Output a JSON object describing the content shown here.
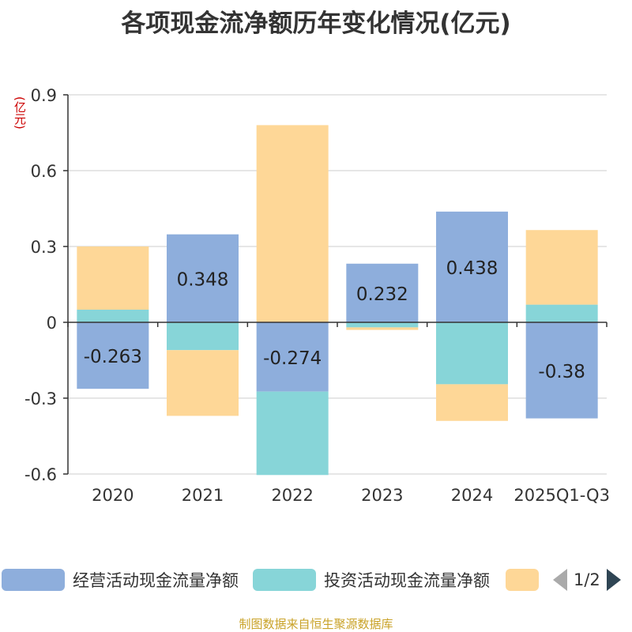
{
  "chart_data": {
    "type": "bar",
    "stacked": true,
    "title": "各项现金流净额历年变化情况(亿元)",
    "unit_label": "(亿元)",
    "categories": [
      "2020",
      "2021",
      "2022",
      "2023",
      "2024",
      "2025Q1-Q3"
    ],
    "series": [
      {
        "name": "经营活动现金流量净额",
        "color": "#8eaedc",
        "values": [
          -0.263,
          0.348,
          -0.274,
          0.232,
          0.438,
          -0.38
        ],
        "labels": [
          "-0.263",
          "0.348",
          "-0.274",
          "0.232",
          "0.438",
          "-0.38"
        ]
      },
      {
        "name": "投资活动现金流量净额",
        "color": "#87d5d8",
        "values": [
          0.05,
          -0.11,
          -0.33,
          -0.02,
          -0.245,
          0.07
        ]
      },
      {
        "name": "",
        "color": "#fed797",
        "values": [
          0.25,
          -0.26,
          0.78,
          -0.01,
          -0.145,
          0.295
        ]
      }
    ],
    "ylim": [
      -0.6,
      0.9
    ],
    "yticks": [
      -0.6,
      -0.3,
      0,
      0.3,
      0.6,
      0.9
    ],
    "ytick_labels": [
      "-0.6",
      "-0.3",
      "0",
      "0.3",
      "0.6",
      "0.9"
    ],
    "grid": true,
    "legend_position": "bottom"
  },
  "legend": {
    "pager": "1/2"
  },
  "source": "制图数据来自恒生聚源数据库"
}
